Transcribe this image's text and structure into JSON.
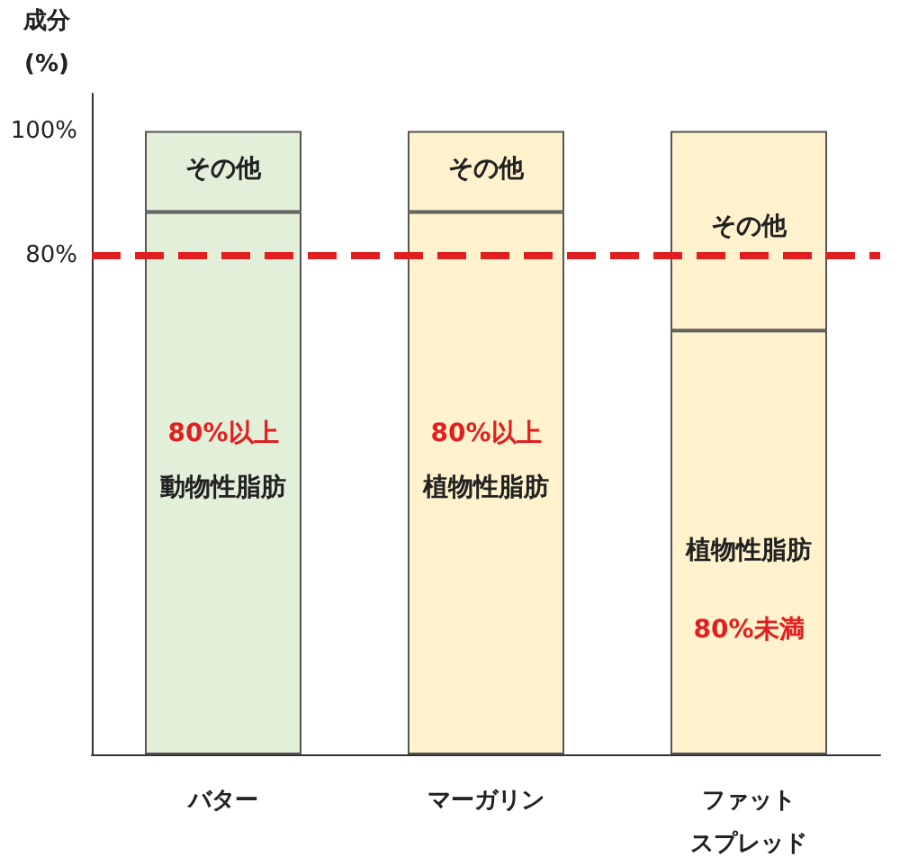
{
  "chart_data": {
    "type": "bar",
    "stacked": true,
    "ylabel": "成分\n(%)",
    "categories": [
      "バター",
      "マーガリン",
      "ファットスプレッド"
    ],
    "series": [
      {
        "colors": [
          "#e2efd9",
          "#fff2cc",
          "#fff2cc"
        ],
        "values": [
          87,
          87,
          68
        ]
      },
      {
        "colors": [
          "#e2efd9",
          "#fff2cc",
          "#fff2cc"
        ],
        "values": [
          13,
          13,
          32
        ]
      }
    ],
    "ylim": [
      0,
      106
    ],
    "yticks": [
      {
        "value": 80,
        "label": "80%"
      },
      {
        "value": 100,
        "label": "100%"
      }
    ],
    "grid": false,
    "ref_lines": [
      {
        "axis": "y",
        "value": 80,
        "color": "#e02020",
        "line_style": "dashed"
      }
    ],
    "annotations": [
      "その他",
      "80%以上",
      "動物性脂肪",
      "その他",
      "80%以上",
      "植物性脂肪",
      "その他",
      "植物性脂肪",
      "80%未満"
    ]
  }
}
